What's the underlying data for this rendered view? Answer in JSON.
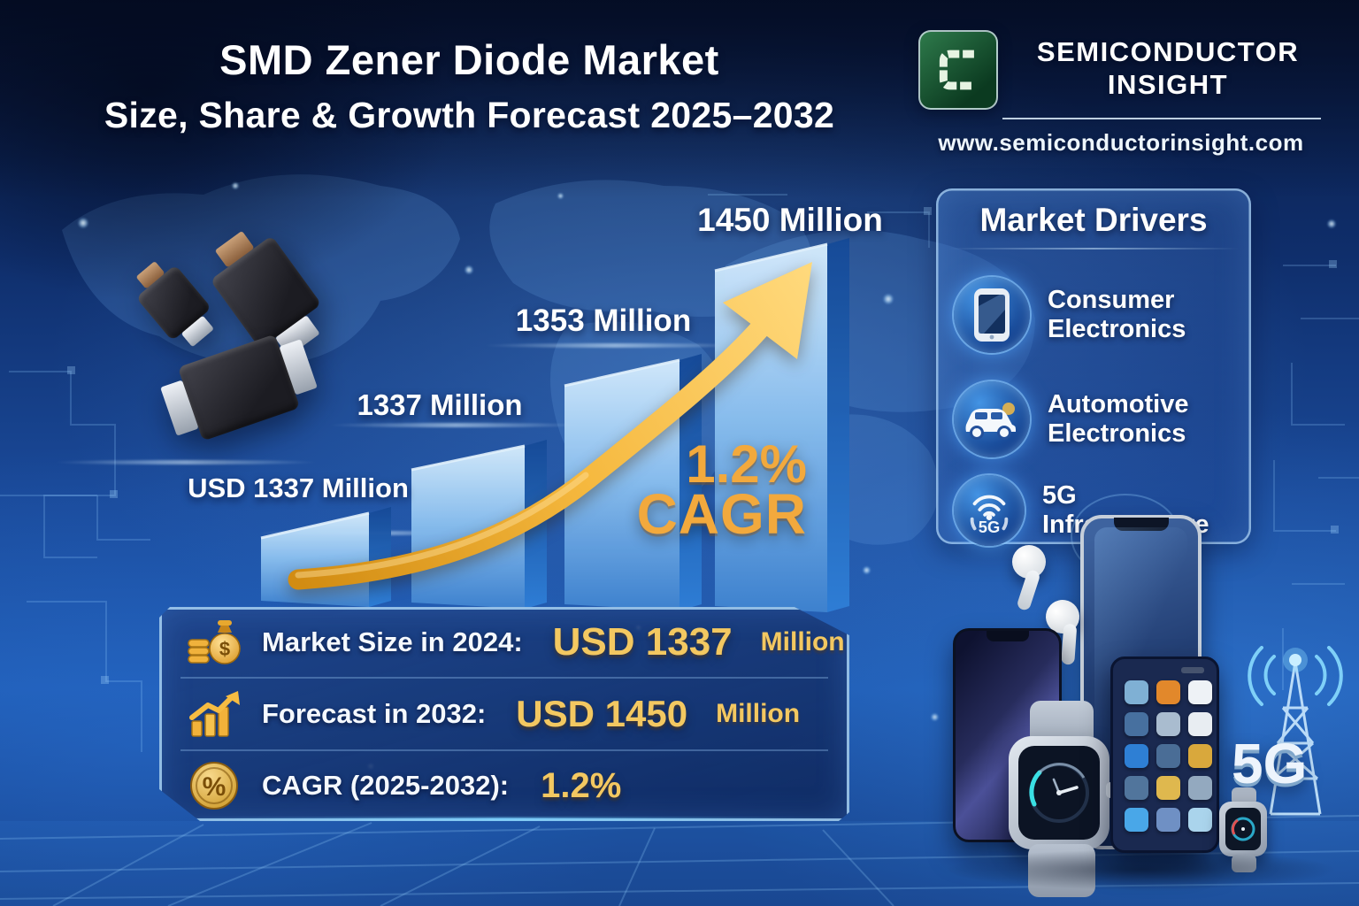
{
  "header": {
    "title_line1": "SMD Zener Diode Market",
    "title_line2": "Size, Share & Growth Forecast 2025–2032"
  },
  "brand": {
    "logo_letter": "C",
    "logo_color": "#15512f",
    "name_line1": "SEMICONDUCTOR",
    "name_line2": "INSIGHT",
    "website": "www.semiconductorinsight.com"
  },
  "chart_data": {
    "type": "bar",
    "title": "SMD Zener Diode Market Size, Share & Growth Forecast 2025–2032",
    "unit": "USD Million",
    "values": [
      1337,
      1337,
      1353,
      1450
    ],
    "bar_labels": [
      "USD 1337 Million",
      "1337 Million",
      "1353 Million",
      "1450 Million"
    ],
    "annotation": {
      "value": "1.2%",
      "label": "CAGR"
    },
    "trend": "upward golden arrow",
    "ylim": [
      0,
      1500
    ],
    "grid": false,
    "legend": false
  },
  "market_drivers": {
    "title": "Market Drivers",
    "items": [
      {
        "icon": "smartphone-icon",
        "label": "Consumer Electronics"
      },
      {
        "icon": "car-icon",
        "label": "Automotive Electronics"
      },
      {
        "icon": "5g-signal-icon",
        "label": "5G Infrastructure",
        "icon_text": "5G"
      }
    ]
  },
  "stats_panel": {
    "rows": [
      {
        "icon": "money-bag-icon",
        "label": "Market Size in 2024:",
        "value": "USD 1337",
        "suffix": "Million"
      },
      {
        "icon": "growth-chart-icon",
        "label": "Forecast in 2032:",
        "value": "USD 1450",
        "suffix": "Million"
      },
      {
        "icon": "percent-coin-icon",
        "label": "CAGR (2025-2032):",
        "value": "1.2%",
        "suffix": ""
      }
    ]
  },
  "devices": {
    "faint_5g_label": "5G",
    "tower_5g_label": "5G"
  },
  "colors": {
    "gold": "#f0a932",
    "gold_light": "#ffd97e",
    "text_gold": "#f3c861",
    "bar_face_top": "#d6ecfc",
    "bar_face_bottom": "#3f83cf",
    "bar_side": "#164a97",
    "bg_deep": "#081a42",
    "panel_border": "#aad6f8",
    "logo_green": "#15512f"
  }
}
